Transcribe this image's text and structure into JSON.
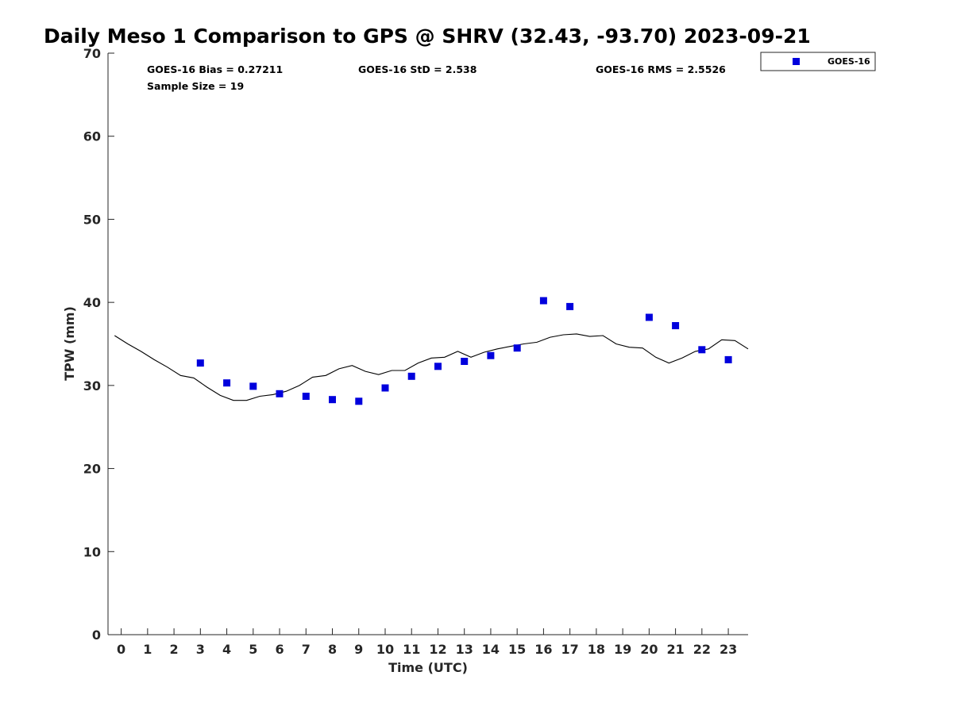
{
  "chart_data": {
    "type": "scatter",
    "title": "Daily Meso 1 Comparison to GPS @ SHRV (32.43, -93.70) 2023-09-21",
    "xlabel": "Time (UTC)",
    "ylabel": "TPW (mm)",
    "xlim": [
      -0.5,
      23.75
    ],
    "ylim": [
      0,
      70
    ],
    "xticks": [
      0,
      1,
      2,
      3,
      4,
      5,
      6,
      7,
      8,
      9,
      10,
      11,
      12,
      13,
      14,
      15,
      16,
      17,
      18,
      19,
      20,
      21,
      22,
      23
    ],
    "yticks": [
      0,
      10,
      20,
      30,
      40,
      50,
      60,
      70
    ],
    "grid": false,
    "legend_position": "top-right",
    "stats": {
      "bias": "GOES-16 Bias = 0.27211",
      "std": "GOES-16 StD = 2.538",
      "rms": "GOES-16 RMS = 2.5526",
      "sample_size": "Sample Size = 19"
    },
    "series": [
      {
        "name": "GOES-16",
        "marker": "square",
        "color": "#0000dd",
        "x": [
          3,
          4,
          5,
          6,
          7,
          8,
          9,
          10,
          11,
          12,
          13,
          14,
          15,
          16,
          17,
          20,
          21,
          22,
          23
        ],
        "y": [
          32.7,
          30.3,
          29.9,
          29.0,
          28.7,
          28.3,
          28.1,
          29.7,
          31.1,
          32.3,
          32.9,
          33.6,
          34.5,
          40.2,
          39.5,
          38.2,
          37.2,
          34.3,
          33.1
        ]
      },
      {
        "marker": "line",
        "color": "#000000",
        "x": [
          -0.25,
          0.25,
          0.75,
          1.25,
          1.75,
          2.25,
          2.75,
          3.25,
          3.75,
          4.25,
          4.75,
          5.25,
          5.75,
          6.25,
          6.75,
          7.25,
          7.75,
          8.25,
          8.75,
          9.25,
          9.75,
          10.25,
          10.75,
          11.25,
          11.75,
          12.25,
          12.75,
          13.25,
          13.75,
          14.25,
          14.75,
          15.25,
          15.75,
          16.25,
          16.75,
          17.25,
          17.75,
          18.25,
          18.75,
          19.25,
          19.75,
          20.25,
          20.75,
          21.25,
          21.75,
          22.25,
          22.75,
          23.25,
          23.75
        ],
        "y": [
          36.0,
          35.0,
          34.1,
          33.1,
          32.2,
          31.2,
          30.9,
          29.8,
          28.8,
          28.2,
          28.2,
          28.7,
          28.9,
          29.3,
          30.0,
          31.0,
          31.2,
          32.0,
          32.4,
          31.7,
          31.3,
          31.8,
          31.8,
          32.7,
          33.3,
          33.4,
          34.1,
          33.4,
          34.0,
          34.4,
          34.7,
          35.0,
          35.2,
          35.8,
          36.1,
          36.2,
          35.9,
          36.0,
          35.0,
          34.6,
          34.5,
          33.4,
          32.7,
          33.3,
          34.1,
          34.4,
          35.5,
          35.4,
          34.4
        ]
      }
    ]
  }
}
